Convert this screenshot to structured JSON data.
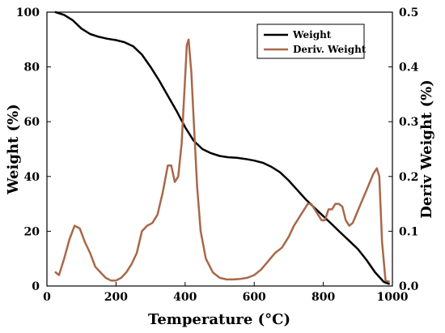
{
  "chart_data": {
    "type": "line",
    "title": "",
    "xlabel": "Temperature (°C)",
    "ylabel": "Weight (%)",
    "ylabel_right": "Deriv Weight (%)",
    "xlim": [
      0,
      1000
    ],
    "ylim": [
      0,
      100
    ],
    "ylim_right": [
      0,
      0.5
    ],
    "xticks": [
      0,
      200,
      400,
      600,
      800,
      1000
    ],
    "yticks": [
      0,
      20,
      40,
      60,
      80,
      100
    ],
    "yticks_right": [
      "0.0",
      "0.1",
      "0.2",
      "0.3",
      "0.4",
      "0.5"
    ],
    "grid": false,
    "legend_position": "top-right",
    "series": [
      {
        "name": "Weight",
        "axis": "left",
        "color": "#000000",
        "x": [
          25,
          50,
          75,
          100,
          125,
          150,
          175,
          200,
          225,
          250,
          275,
          300,
          325,
          350,
          375,
          400,
          425,
          450,
          475,
          500,
          525,
          550,
          575,
          600,
          625,
          650,
          675,
          700,
          725,
          750,
          775,
          800,
          825,
          850,
          875,
          900,
          925,
          950,
          975,
          990
        ],
        "y": [
          100,
          99,
          97,
          94,
          92,
          91,
          90.3,
          89.8,
          89,
          87.5,
          84.5,
          80,
          75,
          69.5,
          64,
          58,
          53,
          50,
          48.5,
          47.5,
          47,
          46.8,
          46.4,
          45.8,
          45,
          43.5,
          41.5,
          38.5,
          35,
          31.5,
          28.5,
          25.5,
          22.5,
          19.5,
          16.5,
          13.5,
          9.5,
          5,
          1.5,
          0.8
        ]
      },
      {
        "name": "Deriv. Weight",
        "axis": "right",
        "color": "#A8684A",
        "x": [
          25,
          35,
          50,
          65,
          80,
          95,
          110,
          125,
          140,
          155,
          170,
          185,
          200,
          215,
          230,
          245,
          260,
          275,
          290,
          305,
          320,
          335,
          350,
          360,
          370,
          380,
          390,
          400,
          405,
          410,
          418,
          425,
          435,
          445,
          460,
          480,
          500,
          520,
          540,
          560,
          580,
          600,
          620,
          640,
          660,
          680,
          700,
          715,
          725,
          735,
          745,
          755,
          765,
          775,
          785,
          795,
          805,
          815,
          825,
          835,
          845,
          855,
          865,
          875,
          885,
          895,
          905,
          915,
          925,
          935,
          945,
          955,
          962,
          970,
          980,
          990
        ],
        "y": [
          0.025,
          0.02,
          0.05,
          0.085,
          0.11,
          0.105,
          0.08,
          0.06,
          0.035,
          0.025,
          0.015,
          0.01,
          0.01,
          0.015,
          0.025,
          0.04,
          0.06,
          0.1,
          0.11,
          0.115,
          0.13,
          0.17,
          0.22,
          0.22,
          0.19,
          0.2,
          0.26,
          0.38,
          0.44,
          0.45,
          0.39,
          0.3,
          0.18,
          0.1,
          0.05,
          0.025,
          0.015,
          0.012,
          0.012,
          0.013,
          0.015,
          0.02,
          0.03,
          0.045,
          0.06,
          0.07,
          0.09,
          0.11,
          0.12,
          0.13,
          0.14,
          0.15,
          0.15,
          0.14,
          0.13,
          0.12,
          0.12,
          0.14,
          0.14,
          0.15,
          0.15,
          0.145,
          0.12,
          0.11,
          0.115,
          0.13,
          0.145,
          0.16,
          0.175,
          0.19,
          0.205,
          0.215,
          0.2,
          0.08,
          0.01,
          0.008
        ]
      }
    ]
  }
}
